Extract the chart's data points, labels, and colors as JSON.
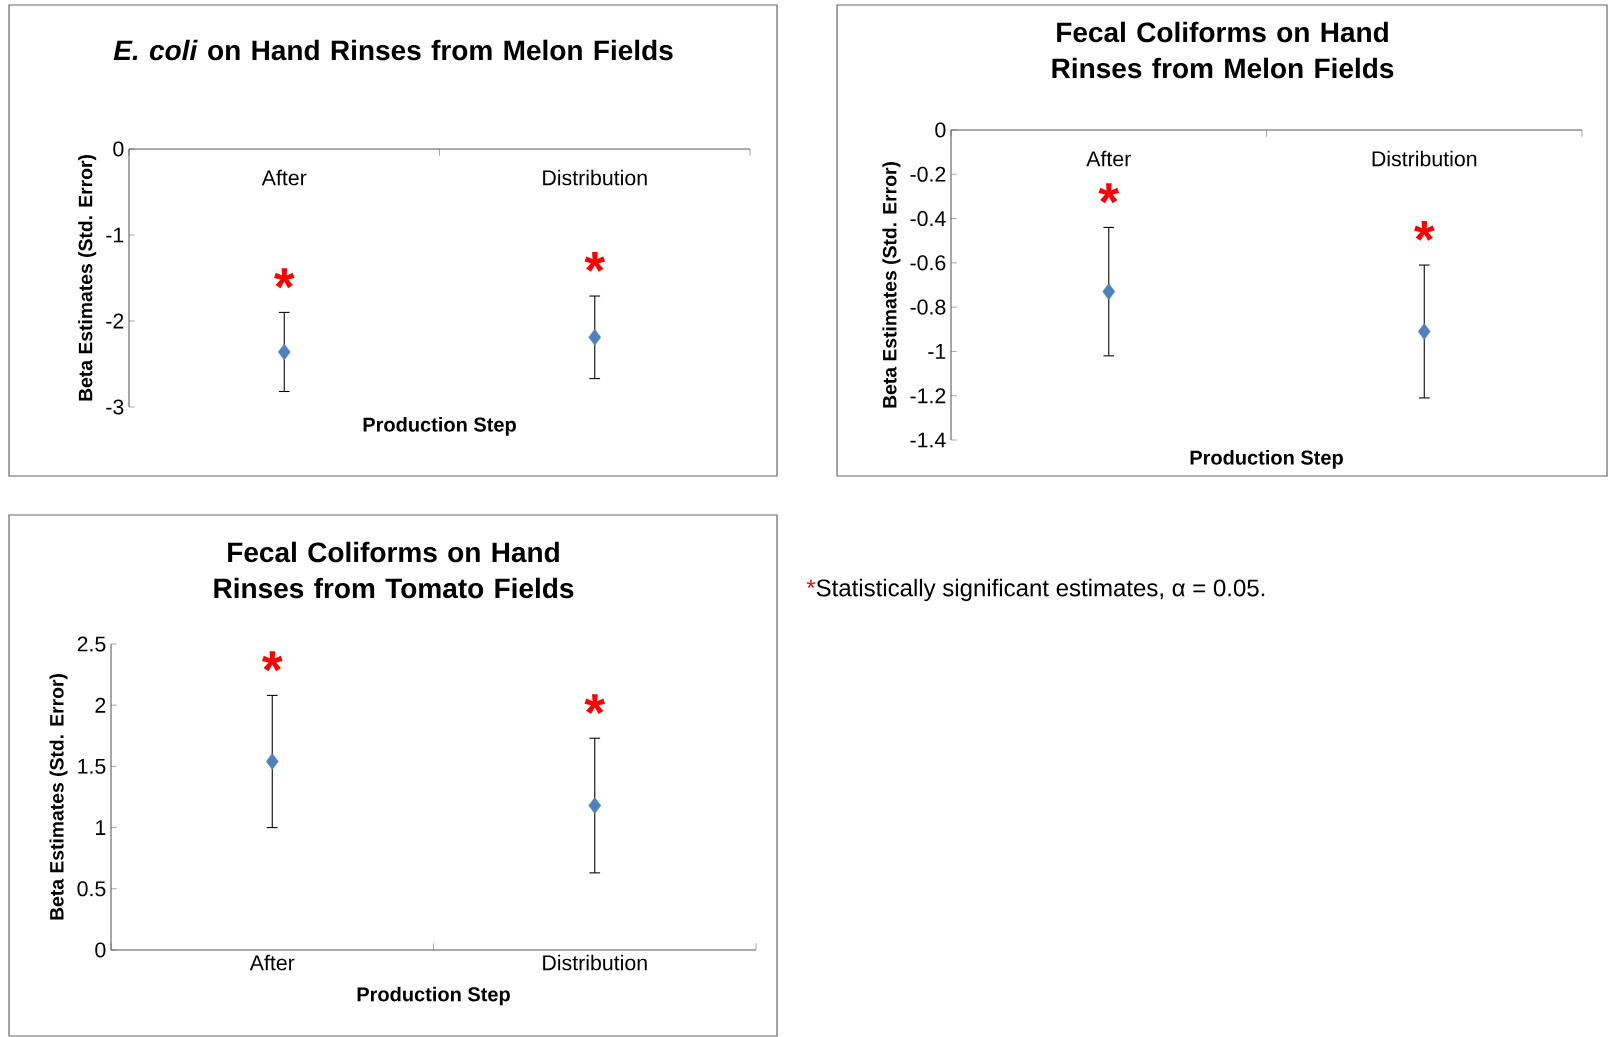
{
  "chart_data": [
    {
      "type": "scatter",
      "title": "*E. coli* on Hand Rinses from Melon Fields",
      "xlabel": "Production Step",
      "ylabel": "Beta Estimates (Std. Error)",
      "categories": [
        "After",
        "Distribution"
      ],
      "values": [
        -2.36,
        -2.19
      ],
      "errors": [
        0.46,
        0.48
      ],
      "color": "#4f81bd",
      "marker": "diamond",
      "ylim": [
        -3,
        0
      ],
      "yticks": [
        -3,
        -2,
        -1,
        0
      ],
      "annotations": [
        "*",
        "*"
      ]
    },
    {
      "type": "scatter",
      "title": "Fecal Coliforms on Hand Rinses from Melon Fields",
      "xlabel": "Production Step",
      "ylabel": "Beta Estimates (Std. Error)",
      "categories": [
        "After",
        "Distribution"
      ],
      "values": [
        -0.73,
        -0.91
      ],
      "errors": [
        0.29,
        0.3
      ],
      "color": "#4f81bd",
      "marker": "diamond",
      "ylim": [
        -1.4,
        0
      ],
      "yticks": [
        -1.4,
        -1.2,
        -1,
        -0.8,
        -0.6,
        -0.4,
        -0.2,
        0
      ],
      "annotations": [
        "*",
        "*"
      ]
    },
    {
      "type": "scatter",
      "title": "Fecal Coliforms on Hand Rinses from Tomato Fields",
      "xlabel": "Production Step",
      "ylabel": "Beta Estimates (Std. Error)",
      "categories": [
        "After",
        "Distribution"
      ],
      "values": [
        1.54,
        1.18
      ],
      "errors": [
        0.54,
        0.55
      ],
      "color": "#4f81bd",
      "marker": "diamond",
      "ylim": [
        0,
        2.5
      ],
      "yticks": [
        0,
        0.5,
        1,
        1.5,
        2,
        2.5
      ],
      "annotations": [
        "*",
        "*"
      ]
    },
    {
      "type": "other",
      "annotations": [
        "*",
        "Statistically significant estimates, α = 0.05."
      ]
    }
  ]
}
